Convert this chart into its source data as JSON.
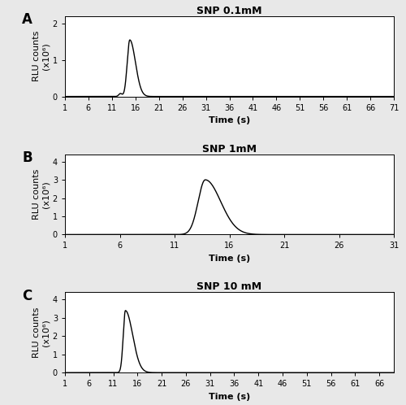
{
  "panels": [
    {
      "label": "A",
      "title": "SNP 0.1mM",
      "xlim": [
        1,
        71
      ],
      "xticks": [
        1,
        6,
        11,
        16,
        21,
        26,
        31,
        36,
        41,
        46,
        51,
        56,
        61,
        66,
        71
      ],
      "ylim": [
        0,
        2.2
      ],
      "yticks": [
        0,
        1,
        2
      ],
      "yticklabels": [
        "0",
        "1",
        "2"
      ],
      "peak_x": 14.8,
      "peak_y": 1.55,
      "rise_sigma": 0.55,
      "fall_sigma": 1.2,
      "pre_bump_x": 12.8,
      "pre_bump_y": 0.08,
      "pre_bump_sigma": 0.35
    },
    {
      "label": "B",
      "title": "SNP 1mM",
      "xlim": [
        1,
        31
      ],
      "xticks": [
        1,
        6,
        11,
        16,
        21,
        26,
        31
      ],
      "ylim": [
        0,
        4.4
      ],
      "yticks": [
        0,
        1,
        2,
        3,
        4
      ],
      "yticklabels": [
        "0",
        "1",
        "2",
        "3",
        "4"
      ],
      "peak_x": 13.8,
      "peak_y": 3.0,
      "rise_sigma": 0.65,
      "fall_sigma": 1.4,
      "pre_bump_x": null,
      "pre_bump_y": null,
      "pre_bump_sigma": null
    },
    {
      "label": "C",
      "title": "SNP 10 mM",
      "xlim": [
        1,
        69
      ],
      "xticks": [
        1,
        6,
        11,
        16,
        21,
        26,
        31,
        36,
        41,
        46,
        51,
        56,
        61,
        66
      ],
      "ylim": [
        0,
        4.4
      ],
      "yticks": [
        0,
        1,
        2,
        3,
        4
      ],
      "yticklabels": [
        "0",
        "1",
        "2",
        "3",
        "4"
      ],
      "peak_x": 13.5,
      "peak_y": 3.4,
      "rise_sigma": 0.45,
      "fall_sigma": 1.5,
      "pre_bump_x": null,
      "pre_bump_y": null,
      "pre_bump_sigma": null
    }
  ],
  "xlabel": "Time (s)",
  "ylabel_line1": "RLU counts",
  "ylabel_line2": "(x10⁶)",
  "bg_color": "#e8e8e8",
  "panel_bg": "#ffffff",
  "line_color": "#000000",
  "line_width": 1.0,
  "title_fontsize": 9,
  "label_fontsize": 8,
  "tick_fontsize": 7,
  "panel_label_fontsize": 12
}
